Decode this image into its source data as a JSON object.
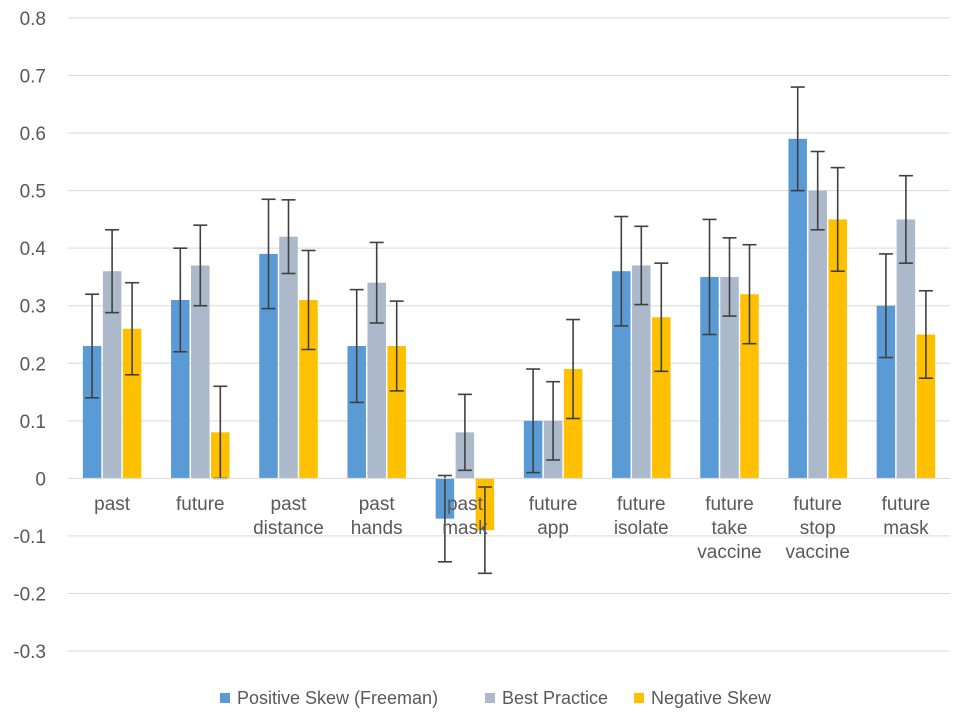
{
  "chart_data": {
    "type": "bar",
    "categories": [
      [
        "past"
      ],
      [
        "future"
      ],
      [
        "past",
        "distance"
      ],
      [
        "past",
        "hands"
      ],
      [
        "past",
        "mask"
      ],
      [
        "future",
        "app"
      ],
      [
        "future",
        "isolate"
      ],
      [
        "future",
        "take",
        "vaccine"
      ],
      [
        "future",
        "stop",
        "vaccine"
      ],
      [
        "future",
        "mask"
      ]
    ],
    "series": [
      {
        "name": "Positive Skew (Freeman)",
        "color": "#5b9bd5",
        "values": [
          0.23,
          0.31,
          0.39,
          0.23,
          -0.07,
          0.1,
          0.36,
          0.35,
          0.59,
          0.3
        ],
        "errors": [
          0.09,
          0.09,
          0.095,
          0.098,
          0.075,
          0.09,
          0.095,
          0.1,
          0.09,
          0.09
        ]
      },
      {
        "name": "Best Practice",
        "color": "#acb9ca",
        "values": [
          0.36,
          0.37,
          0.42,
          0.34,
          0.08,
          0.1,
          0.37,
          0.35,
          0.5,
          0.45
        ],
        "errors": [
          0.072,
          0.07,
          0.064,
          0.07,
          0.066,
          0.068,
          0.068,
          0.068,
          0.068,
          0.076
        ]
      },
      {
        "name": "Negative Skew",
        "color": "#ffc000",
        "values": [
          0.26,
          0.08,
          0.31,
          0.23,
          -0.09,
          0.19,
          0.28,
          0.32,
          0.45,
          0.25
        ],
        "errors": [
          0.08,
          0.08,
          0.086,
          0.078,
          0.075,
          0.086,
          0.094,
          0.086,
          0.09,
          0.076
        ]
      }
    ],
    "y_ticks": [
      "0.8",
      "0.7",
      "0.6",
      "0.5",
      "0.4",
      "0.3",
      "0.2",
      "0.1",
      "0",
      "-0.1",
      "-0.2",
      "-0.3"
    ],
    "ylim": [
      -0.3,
      0.8
    ],
    "grid": true,
    "legend_position": "bottom",
    "title": "",
    "xlabel": "",
    "ylabel": ""
  }
}
